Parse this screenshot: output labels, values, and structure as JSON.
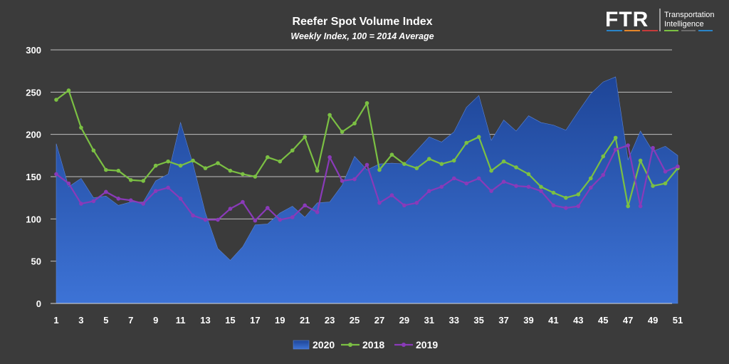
{
  "chart_data": {
    "type": "area+line",
    "title": "Reefer Spot Volume Index",
    "subtitle": "Weekly Index, 100 = 2014 Average",
    "ylim": [
      0,
      300
    ],
    "yticks": [
      0,
      50,
      100,
      150,
      200,
      250,
      300
    ],
    "xticks": [
      1,
      3,
      5,
      7,
      9,
      11,
      13,
      15,
      17,
      19,
      21,
      23,
      25,
      27,
      29,
      31,
      33,
      35,
      37,
      39,
      41,
      43,
      45,
      47,
      49,
      51
    ],
    "grid": true,
    "legend_position": "bottom",
    "x": [
      1,
      2,
      3,
      4,
      5,
      6,
      7,
      8,
      9,
      10,
      11,
      12,
      13,
      14,
      15,
      16,
      17,
      18,
      19,
      20,
      21,
      22,
      23,
      24,
      25,
      26,
      27,
      28,
      29,
      30,
      31,
      32,
      33,
      34,
      35,
      36,
      37,
      38,
      39,
      40,
      41,
      42,
      43,
      44,
      45,
      46,
      47,
      48,
      49,
      50,
      51
    ],
    "series": [
      {
        "name": "2020",
        "style": "area",
        "color": "#3f6fd3",
        "values": [
          189,
          138,
          148,
          125,
          127,
          116,
          120,
          120,
          145,
          153,
          214,
          165,
          107,
          65,
          51,
          67,
          93,
          94,
          107,
          115,
          102,
          119,
          120,
          140,
          174,
          158,
          165,
          166,
          165,
          181,
          197,
          191,
          203,
          232,
          246,
          193,
          217,
          204,
          222,
          214,
          211,
          205,
          227,
          248,
          262,
          268,
          170,
          204,
          180,
          186,
          175
        ]
      },
      {
        "name": "2018",
        "style": "line",
        "color": "#7bc043",
        "values": [
          241,
          252,
          208,
          181,
          158,
          157,
          146,
          145,
          163,
          168,
          163,
          169,
          160,
          166,
          157,
          153,
          150,
          173,
          168,
          181,
          197,
          157,
          223,
          203,
          213,
          237,
          158,
          176,
          165,
          160,
          171,
          165,
          169,
          190,
          197,
          157,
          168,
          161,
          153,
          138,
          131,
          125,
          129,
          148,
          174,
          196,
          115,
          169,
          139,
          142,
          160
        ]
      },
      {
        "name": "2019",
        "style": "line",
        "color": "#8a3ab9",
        "values": [
          153,
          142,
          118,
          121,
          132,
          124,
          122,
          118,
          133,
          137,
          124,
          104,
          99,
          99,
          112,
          120,
          98,
          113,
          99,
          102,
          116,
          108,
          173,
          145,
          147,
          164,
          119,
          128,
          116,
          119,
          133,
          138,
          148,
          142,
          148,
          133,
          144,
          139,
          138,
          133,
          116,
          113,
          115,
          137,
          152,
          182,
          187,
          115,
          184,
          156,
          162
        ]
      }
    ]
  },
  "logo": {
    "text": "FTR",
    "subtext_line1": "Transportation",
    "subtext_line2": "Intelligence"
  }
}
